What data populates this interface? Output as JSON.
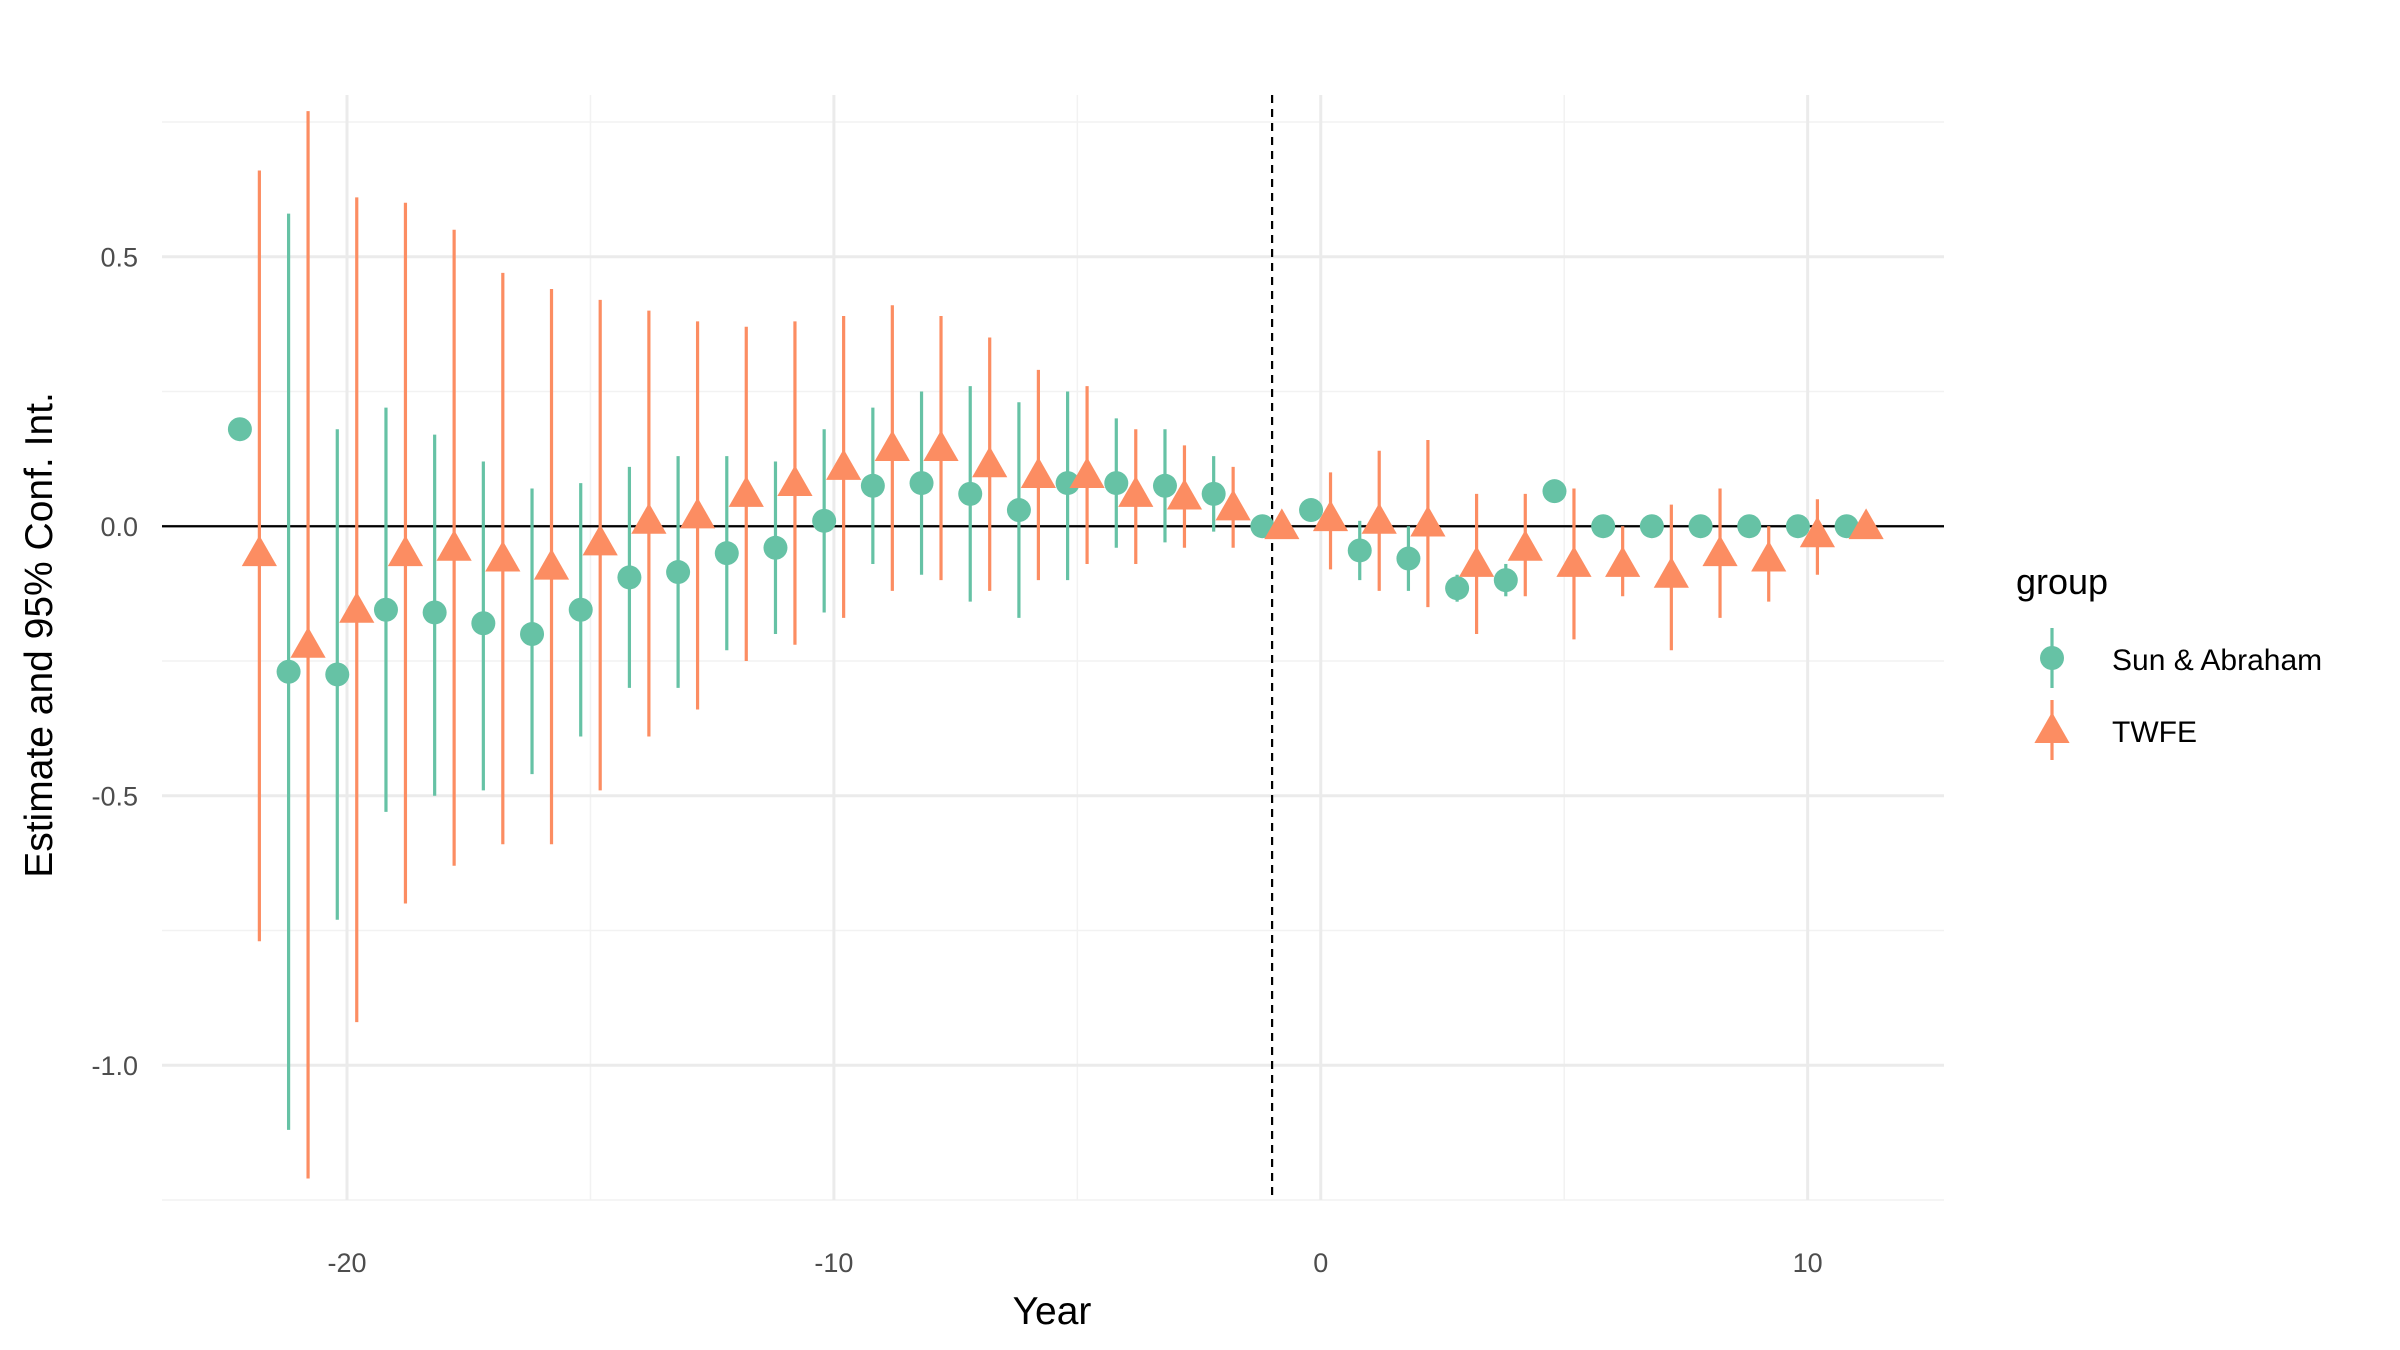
{
  "chart_data": {
    "type": "scatter",
    "xlabel": "Year",
    "ylabel": "Estimate and 95% Conf. Int.",
    "xlim": [
      -23.8,
      12.8
    ],
    "ylim": [
      -1.25,
      0.8
    ],
    "x_ticks": [
      -20,
      -10,
      0,
      10
    ],
    "x_tick_labels": [
      "-20",
      "-10",
      "0",
      "10"
    ],
    "y_ticks": [
      -1.0,
      -0.5,
      0.0,
      0.5
    ],
    "y_tick_labels": [
      "-1.0",
      "-0.5",
      "0.0",
      "0.5"
    ],
    "hline": 0,
    "vline": -1,
    "grid": true,
    "legend": {
      "title": "group",
      "position": "right",
      "entries": [
        "Sun & Abraham",
        "TWFE"
      ]
    },
    "series": [
      {
        "name": "Sun & Abraham",
        "color": "#66c2a5",
        "marker": "circle",
        "points": [
          {
            "x": -22,
            "y": 0.18,
            "lo": null,
            "hi": null
          },
          {
            "x": -21,
            "y": -0.27,
            "lo": -1.12,
            "hi": 0.58
          },
          {
            "x": -20,
            "y": -0.275,
            "lo": -0.73,
            "hi": 0.18
          },
          {
            "x": -19,
            "y": -0.155,
            "lo": -0.53,
            "hi": 0.22
          },
          {
            "x": -18,
            "y": -0.16,
            "lo": -0.5,
            "hi": 0.17
          },
          {
            "x": -17,
            "y": -0.18,
            "lo": -0.49,
            "hi": 0.12
          },
          {
            "x": -16,
            "y": -0.2,
            "lo": -0.46,
            "hi": 0.07
          },
          {
            "x": -15,
            "y": -0.155,
            "lo": -0.39,
            "hi": 0.08
          },
          {
            "x": -14,
            "y": -0.095,
            "lo": -0.3,
            "hi": 0.11
          },
          {
            "x": -13,
            "y": -0.085,
            "lo": -0.3,
            "hi": 0.13
          },
          {
            "x": -12,
            "y": -0.05,
            "lo": -0.23,
            "hi": 0.13
          },
          {
            "x": -11,
            "y": -0.04,
            "lo": -0.2,
            "hi": 0.12
          },
          {
            "x": -10,
            "y": 0.01,
            "lo": -0.16,
            "hi": 0.18
          },
          {
            "x": -9,
            "y": 0.075,
            "lo": -0.07,
            "hi": 0.22
          },
          {
            "x": -8,
            "y": 0.08,
            "lo": -0.09,
            "hi": 0.25
          },
          {
            "x": -7,
            "y": 0.06,
            "lo": -0.14,
            "hi": 0.26
          },
          {
            "x": -6,
            "y": 0.03,
            "lo": -0.17,
            "hi": 0.23
          },
          {
            "x": -5,
            "y": 0.08,
            "lo": -0.1,
            "hi": 0.25
          },
          {
            "x": -4,
            "y": 0.08,
            "lo": -0.04,
            "hi": 0.2
          },
          {
            "x": -3,
            "y": 0.075,
            "lo": -0.03,
            "hi": 0.18
          },
          {
            "x": -2,
            "y": 0.06,
            "lo": -0.01,
            "hi": 0.13
          },
          {
            "x": -1,
            "y": 0.0,
            "lo": null,
            "hi": null
          },
          {
            "x": 0,
            "y": 0.03,
            "lo": null,
            "hi": null
          },
          {
            "x": 1,
            "y": -0.045,
            "lo": -0.1,
            "hi": 0.01
          },
          {
            "x": 2,
            "y": -0.06,
            "lo": -0.12,
            "hi": 0.0
          },
          {
            "x": 3,
            "y": -0.115,
            "lo": -0.14,
            "hi": -0.09
          },
          {
            "x": 4,
            "y": -0.1,
            "lo": -0.13,
            "hi": -0.07
          },
          {
            "x": 5,
            "y": 0.065,
            "lo": null,
            "hi": null
          },
          {
            "x": 6,
            "y": 0.0,
            "lo": null,
            "hi": null
          },
          {
            "x": 7,
            "y": 0.0,
            "lo": null,
            "hi": null
          },
          {
            "x": 8,
            "y": 0.0,
            "lo": null,
            "hi": null
          },
          {
            "x": 9,
            "y": 0.0,
            "lo": null,
            "hi": null
          },
          {
            "x": 10,
            "y": 0.0,
            "lo": null,
            "hi": null
          },
          {
            "x": 11,
            "y": 0.0,
            "lo": null,
            "hi": null
          }
        ]
      },
      {
        "name": "TWFE",
        "color": "#fc8d62",
        "marker": "triangle",
        "points": [
          {
            "x": -22,
            "y": -0.05,
            "lo": -0.77,
            "hi": 0.66
          },
          {
            "x": -21,
            "y": -0.22,
            "lo": -1.21,
            "hi": 0.77
          },
          {
            "x": -20,
            "y": -0.155,
            "lo": -0.92,
            "hi": 0.61
          },
          {
            "x": -19,
            "y": -0.05,
            "lo": -0.7,
            "hi": 0.6
          },
          {
            "x": -18,
            "y": -0.04,
            "lo": -0.63,
            "hi": 0.55
          },
          {
            "x": -17,
            "y": -0.06,
            "lo": -0.59,
            "hi": 0.47
          },
          {
            "x": -16,
            "y": -0.075,
            "lo": -0.59,
            "hi": 0.44
          },
          {
            "x": -15,
            "y": -0.03,
            "lo": -0.49,
            "hi": 0.42
          },
          {
            "x": -14,
            "y": 0.01,
            "lo": -0.39,
            "hi": 0.4
          },
          {
            "x": -13,
            "y": 0.02,
            "lo": -0.34,
            "hi": 0.38
          },
          {
            "x": -12,
            "y": 0.06,
            "lo": -0.25,
            "hi": 0.37
          },
          {
            "x": -11,
            "y": 0.08,
            "lo": -0.22,
            "hi": 0.38
          },
          {
            "x": -10,
            "y": 0.11,
            "lo": -0.17,
            "hi": 0.39
          },
          {
            "x": -9,
            "y": 0.145,
            "lo": -0.12,
            "hi": 0.41
          },
          {
            "x": -8,
            "y": 0.145,
            "lo": -0.1,
            "hi": 0.39
          },
          {
            "x": -7,
            "y": 0.115,
            "lo": -0.12,
            "hi": 0.35
          },
          {
            "x": -6,
            "y": 0.095,
            "lo": -0.1,
            "hi": 0.29
          },
          {
            "x": -5,
            "y": 0.095,
            "lo": -0.07,
            "hi": 0.26
          },
          {
            "x": -4,
            "y": 0.06,
            "lo": -0.07,
            "hi": 0.18
          },
          {
            "x": -3,
            "y": 0.055,
            "lo": -0.04,
            "hi": 0.15
          },
          {
            "x": -2,
            "y": 0.035,
            "lo": -0.04,
            "hi": 0.11
          },
          {
            "x": -1,
            "y": 0.0,
            "lo": null,
            "hi": null
          },
          {
            "x": 0,
            "y": 0.015,
            "lo": -0.08,
            "hi": 0.1
          },
          {
            "x": 1,
            "y": 0.01,
            "lo": -0.12,
            "hi": 0.14
          },
          {
            "x": 2,
            "y": 0.005,
            "lo": -0.15,
            "hi": 0.16
          },
          {
            "x": 3,
            "y": -0.07,
            "lo": -0.2,
            "hi": 0.06
          },
          {
            "x": 4,
            "y": -0.04,
            "lo": -0.13,
            "hi": 0.06
          },
          {
            "x": 5,
            "y": -0.07,
            "lo": -0.21,
            "hi": 0.07
          },
          {
            "x": 6,
            "y": -0.07,
            "lo": -0.13,
            "hi": 0.0
          },
          {
            "x": 7,
            "y": -0.09,
            "lo": -0.23,
            "hi": 0.04
          },
          {
            "x": 8,
            "y": -0.05,
            "lo": -0.17,
            "hi": 0.07
          },
          {
            "x": 9,
            "y": -0.06,
            "lo": -0.14,
            "hi": 0.0
          },
          {
            "x": 10,
            "y": -0.015,
            "lo": -0.09,
            "hi": 0.05
          },
          {
            "x": 11,
            "y": 0.0,
            "lo": null,
            "hi": null
          }
        ]
      }
    ]
  }
}
